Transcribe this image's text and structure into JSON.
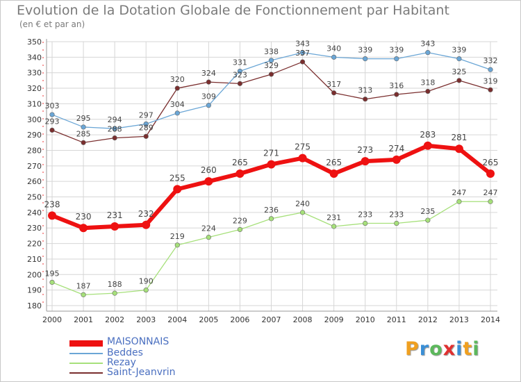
{
  "title": "Evolution de la Dotation Globale de Fonctionnement par Habitant",
  "subtitle": "(en € et par an)",
  "colors": {
    "MAISONNAIS": "#ee1111",
    "Beddes": "#6aa6d6",
    "Rezay": "#a6e07a",
    "Saint-Jeanvrin": "#7a2e2e",
    "grid": "#d6d6d6",
    "legend_text": "#4a6fc0"
  },
  "chart_data": {
    "type": "line",
    "title": "Evolution de la Dotation Globale de Fonctionnement par Habitant",
    "subtitle": "(en € et par an)",
    "xlabel": "",
    "ylabel": "",
    "ylim": [
      180,
      350
    ],
    "yticks": [
      180,
      190,
      200,
      210,
      220,
      230,
      240,
      250,
      260,
      270,
      280,
      290,
      300,
      310,
      320,
      330,
      340,
      350
    ],
    "categories": [
      "2000",
      "2001",
      "2002",
      "2003",
      "2004",
      "2005",
      "2006",
      "2007",
      "2008",
      "2009",
      "2010",
      "2011",
      "2012",
      "2013",
      "2014"
    ],
    "grid": true,
    "legend": "bottom-left",
    "series": [
      {
        "name": "MAISONNAIS",
        "values": [
          238,
          230,
          231,
          232,
          255,
          260,
          265,
          271,
          275,
          265,
          273,
          274,
          283,
          281,
          265
        ]
      },
      {
        "name": "Beddes",
        "values": [
          303,
          295,
          294,
          297,
          304,
          309,
          331,
          338,
          343,
          340,
          339,
          339,
          343,
          339,
          332
        ]
      },
      {
        "name": "Rezay",
        "values": [
          195,
          187,
          188,
          190,
          219,
          224,
          229,
          236,
          240,
          231,
          233,
          233,
          235,
          247,
          247
        ]
      },
      {
        "name": "Saint-Jeanvrin",
        "values": [
          293,
          285,
          288,
          289,
          320,
          324,
          323,
          329,
          337,
          317,
          313,
          316,
          318,
          325,
          319
        ]
      }
    ]
  },
  "legend": {
    "items": [
      "MAISONNAIS",
      "Beddes",
      "Rezay",
      "Saint-Jeanvrin"
    ]
  },
  "logo": {
    "letters": [
      "P",
      "r",
      "o",
      "x",
      "i",
      "t",
      "i"
    ],
    "colors": [
      "#f0a020",
      "#3a8fd6",
      "#5cb85c",
      "#e03030",
      "#3a8fd6",
      "#f0a020",
      "#5cb85c"
    ]
  }
}
